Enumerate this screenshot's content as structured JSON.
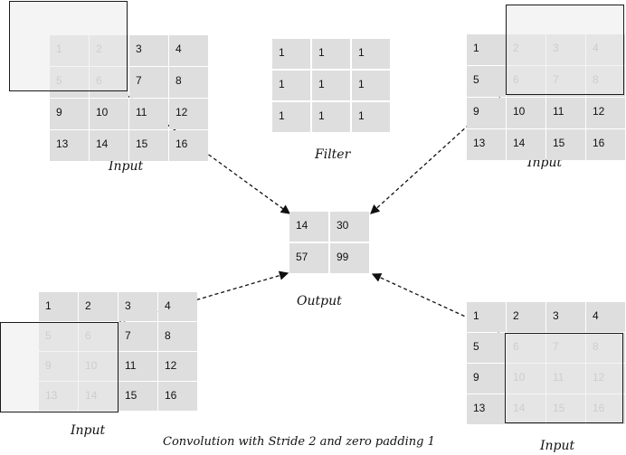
{
  "input_grid": [
    [
      "1",
      "2",
      "3",
      "4"
    ],
    [
      "5",
      "6",
      "7",
      "8"
    ],
    [
      "9",
      "10",
      "11",
      "12"
    ],
    [
      "13",
      "14",
      "15",
      "16"
    ]
  ],
  "filter_grid": [
    [
      "1",
      "1",
      "1"
    ],
    [
      "1",
      "1",
      "1"
    ],
    [
      "1",
      "1",
      "1"
    ]
  ],
  "output_grid": [
    [
      "14",
      "30"
    ],
    [
      "57",
      "99"
    ]
  ],
  "labels": {
    "input": "Input",
    "filter": "Filter",
    "output": "Output",
    "caption": "Convolution with Stride 2 and zero padding 1"
  },
  "panels": [
    {
      "id": "top-left",
      "window_covers": [
        [
          0,
          0
        ],
        [
          0,
          1
        ],
        [
          1,
          0
        ],
        [
          1,
          1
        ]
      ]
    },
    {
      "id": "top-right",
      "window_covers": [
        [
          0,
          1
        ],
        [
          0,
          2
        ],
        [
          0,
          3
        ],
        [
          1,
          1
        ],
        [
          1,
          2
        ],
        [
          1,
          3
        ]
      ]
    },
    {
      "id": "bottom-left",
      "window_covers": [
        [
          1,
          0
        ],
        [
          1,
          1
        ],
        [
          2,
          0
        ],
        [
          2,
          1
        ],
        [
          3,
          0
        ],
        [
          3,
          1
        ]
      ]
    },
    {
      "id": "bottom-right",
      "window_covers": [
        [
          1,
          1
        ],
        [
          1,
          2
        ],
        [
          1,
          3
        ],
        [
          2,
          1
        ],
        [
          2,
          2
        ],
        [
          2,
          3
        ],
        [
          3,
          1
        ],
        [
          3,
          2
        ],
        [
          3,
          3
        ]
      ]
    }
  ]
}
